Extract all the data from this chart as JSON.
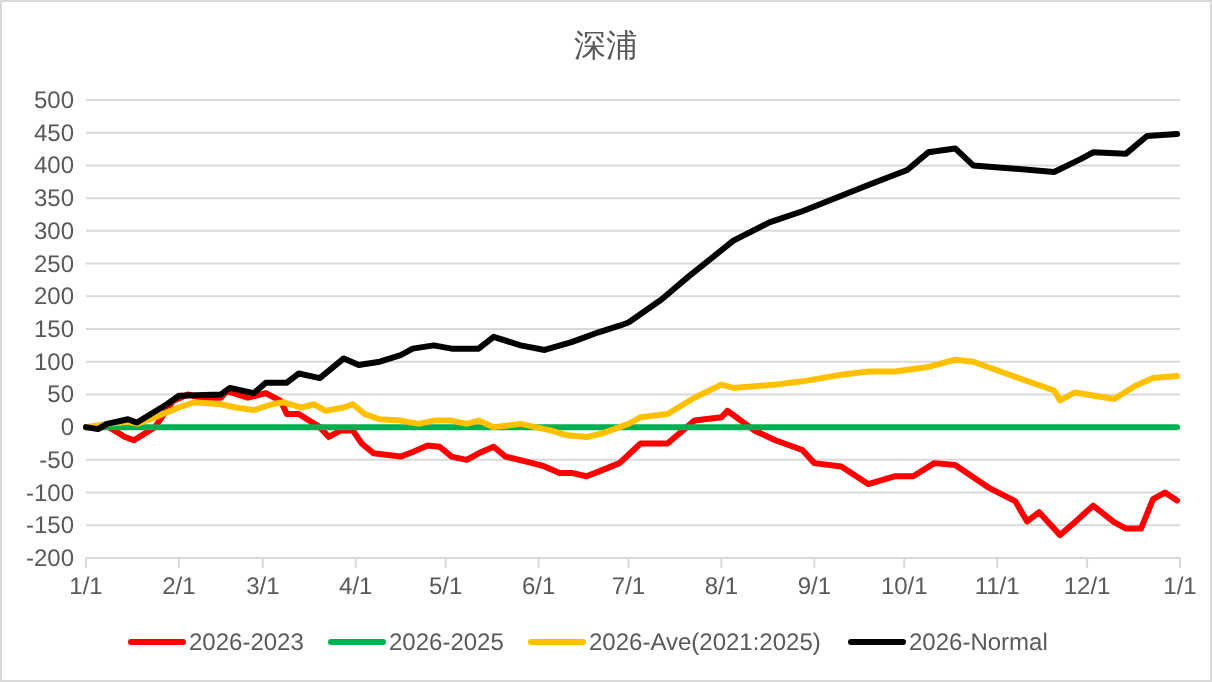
{
  "chart_data": {
    "type": "line",
    "title": "深浦",
    "xlim": [
      "2026-01-01",
      "2027-01-01"
    ],
    "ylim": [
      -200,
      500
    ],
    "xticks": [
      {
        "value": "2026-01-01",
        "label": "1/1"
      },
      {
        "value": "2026-02-01",
        "label": "2/1"
      },
      {
        "value": "2026-03-01",
        "label": "3/1"
      },
      {
        "value": "2026-04-01",
        "label": "4/1"
      },
      {
        "value": "2026-05-01",
        "label": "5/1"
      },
      {
        "value": "2026-06-01",
        "label": "6/1"
      },
      {
        "value": "2026-07-01",
        "label": "7/1"
      },
      {
        "value": "2026-08-01",
        "label": "8/1"
      },
      {
        "value": "2026-09-01",
        "label": "9/1"
      },
      {
        "value": "2026-10-01",
        "label": "10/1"
      },
      {
        "value": "2026-11-01",
        "label": "11/1"
      },
      {
        "value": "2026-12-01",
        "label": "12/1"
      },
      {
        "value": "2027-01-01",
        "label": "1/1"
      }
    ],
    "yticks": [
      -200,
      -150,
      -100,
      -50,
      0,
      50,
      100,
      150,
      200,
      250,
      300,
      350,
      400,
      450,
      500
    ],
    "grid": "y",
    "legend": "bottom",
    "marker": "none",
    "line_style": "solid",
    "series": [
      {
        "name": "2026-2023",
        "color": "#ff0000",
        "x": [
          "2026-01-01",
          "2026-01-08",
          "2026-01-14",
          "2026-01-17",
          "2026-01-24",
          "2026-01-30",
          "2026-02-04",
          "2026-02-08",
          "2026-02-15",
          "2026-02-17",
          "2026-02-24",
          "2026-03-02",
          "2026-03-07",
          "2026-03-09",
          "2026-03-13",
          "2026-03-20",
          "2026-03-23",
          "2026-03-27",
          "2026-03-31",
          "2026-04-03",
          "2026-04-07",
          "2026-04-16",
          "2026-04-20",
          "2026-04-25",
          "2026-04-29",
          "2026-05-03",
          "2026-05-08",
          "2026-05-12",
          "2026-05-17",
          "2026-05-21",
          "2026-05-30",
          "2026-06-03",
          "2026-06-08",
          "2026-06-12",
          "2026-06-17",
          "2026-06-21",
          "2026-06-28",
          "2026-07-05",
          "2026-07-14",
          "2026-07-23",
          "2026-08-01",
          "2026-08-03",
          "2026-08-12",
          "2026-08-19",
          "2026-08-28",
          "2026-09-01",
          "2026-09-10",
          "2026-09-19",
          "2026-09-28",
          "2026-10-04",
          "2026-10-11",
          "2026-10-18",
          "2026-10-29",
          "2026-11-07",
          "2026-11-11",
          "2026-11-15",
          "2026-11-22",
          "2026-11-27",
          "2026-12-03",
          "2026-12-10",
          "2026-12-14",
          "2026-12-19",
          "2026-12-23",
          "2026-12-27",
          "2026-12-31"
        ],
        "values": [
          0,
          2,
          -15,
          -20,
          0,
          40,
          50,
          45,
          45,
          55,
          45,
          52,
          40,
          20,
          20,
          0,
          -15,
          -5,
          -5,
          -25,
          -40,
          -45,
          -38,
          -28,
          -30,
          -45,
          -50,
          -40,
          -30,
          -45,
          -55,
          -60,
          -70,
          -70,
          -75,
          -68,
          -55,
          -25,
          -25,
          10,
          15,
          25,
          -5,
          -20,
          -35,
          -55,
          -60,
          -87,
          -75,
          -75,
          -55,
          -58,
          -92,
          -113,
          -144,
          -130,
          -165,
          -145,
          -120,
          -145,
          -155,
          -155,
          -110,
          -100,
          -112
        ]
      },
      {
        "name": "2026-2025",
        "color": "#00b050",
        "x": [
          "2026-01-01",
          "2026-12-31"
        ],
        "values": [
          0,
          0
        ]
      },
      {
        "name": "2026-Ave(2021:2025)",
        "color": "#ffc000",
        "x": [
          "2026-01-01",
          "2026-01-08",
          "2026-01-15",
          "2026-01-18",
          "2026-01-24",
          "2026-02-01",
          "2026-02-06",
          "2026-02-15",
          "2026-02-20",
          "2026-02-26",
          "2026-03-04",
          "2026-03-08",
          "2026-03-14",
          "2026-03-18",
          "2026-03-22",
          "2026-03-28",
          "2026-03-31",
          "2026-04-04",
          "2026-04-09",
          "2026-04-16",
          "2026-04-22",
          "2026-04-27",
          "2026-05-03",
          "2026-05-08",
          "2026-05-12",
          "2026-05-17",
          "2026-05-21",
          "2026-05-26",
          "2026-05-31",
          "2026-06-05",
          "2026-06-10",
          "2026-06-17",
          "2026-06-22",
          "2026-07-01",
          "2026-07-05",
          "2026-07-14",
          "2026-07-23",
          "2026-08-01",
          "2026-08-05",
          "2026-08-19",
          "2026-08-28",
          "2026-09-10",
          "2026-09-19",
          "2026-09-28",
          "2026-10-09",
          "2026-10-18",
          "2026-10-24",
          "2026-11-07",
          "2026-11-20",
          "2026-11-22",
          "2026-11-27",
          "2026-12-10",
          "2026-12-17",
          "2026-12-23",
          "2026-12-31"
        ],
        "values": [
          0,
          5,
          8,
          5,
          15,
          30,
          38,
          35,
          30,
          26,
          35,
          38,
          30,
          35,
          25,
          30,
          35,
          20,
          12,
          10,
          5,
          10,
          10,
          5,
          10,
          0,
          2,
          5,
          0,
          -5,
          -12,
          -15,
          -10,
          5,
          15,
          20,
          45,
          65,
          60,
          65,
          70,
          80,
          85,
          85,
          92,
          103,
          100,
          77,
          56,
          41,
          53,
          43,
          63,
          75,
          78
        ]
      },
      {
        "name": "2026-Normal",
        "color": "#000000",
        "x": [
          "2026-01-01",
          "2026-01-05",
          "2026-01-08",
          "2026-01-15",
          "2026-01-18",
          "2026-01-28",
          "2026-02-01",
          "2026-02-15",
          "2026-02-18",
          "2026-02-26",
          "2026-03-02",
          "2026-03-09",
          "2026-03-13",
          "2026-03-20",
          "2026-03-28",
          "2026-04-02",
          "2026-04-09",
          "2026-04-16",
          "2026-04-20",
          "2026-04-27",
          "2026-05-03",
          "2026-05-12",
          "2026-05-17",
          "2026-05-26",
          "2026-06-03",
          "2026-06-12",
          "2026-06-21",
          "2026-06-28",
          "2026-07-01",
          "2026-07-12",
          "2026-07-21",
          "2026-08-05",
          "2026-08-17",
          "2026-08-28",
          "2026-09-19",
          "2026-10-02",
          "2026-10-09",
          "2026-10-18",
          "2026-10-24",
          "2026-11-07",
          "2026-11-20",
          "2026-11-29",
          "2026-12-03",
          "2026-12-14",
          "2026-12-21",
          "2026-12-31"
        ],
        "values": [
          0,
          -3,
          5,
          12,
          7,
          35,
          48,
          50,
          60,
          52,
          68,
          68,
          82,
          75,
          105,
          95,
          100,
          110,
          120,
          125,
          120,
          120,
          138,
          125,
          118,
          130,
          145,
          155,
          160,
          195,
          230,
          285,
          313,
          330,
          370,
          393,
          420,
          426,
          400,
          395,
          390,
          410,
          420,
          418,
          445,
          448
        ]
      }
    ]
  }
}
